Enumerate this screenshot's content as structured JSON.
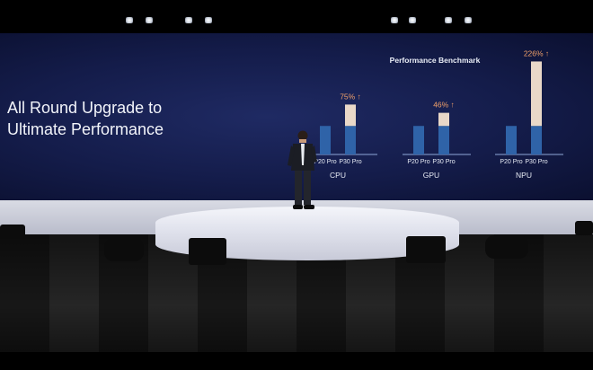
{
  "slide": {
    "headline_line1": "All Round Upgrade to",
    "headline_line2": "Ultimate Performance"
  },
  "colors": {
    "p20_bar": "#2f63a8",
    "p30_base": "#2f63a8",
    "p30_gain": "#e9d8c8",
    "gain_label": "#f0a06a",
    "text": "#e8ecf5"
  },
  "chart_data": {
    "type": "bar",
    "title": "Performance Benchmark",
    "categories": [
      "P20 Pro",
      "P30 Pro"
    ],
    "groups": [
      {
        "name": "CPU",
        "p20": 100,
        "p30": 175,
        "gain_label": "75% ↑"
      },
      {
        "name": "GPU",
        "p20": 100,
        "p30": 146,
        "gain_label": "46% ↑"
      },
      {
        "name": "NPU",
        "p20": 100,
        "p30": 326,
        "gain_label": "226% ↑"
      }
    ],
    "ylim": [
      0,
      340
    ],
    "unit": "relative performance (P20 Pro = 100)"
  }
}
